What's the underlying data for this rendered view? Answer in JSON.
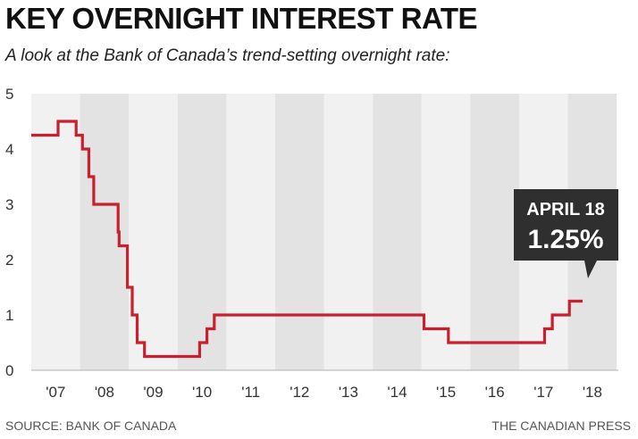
{
  "header": {
    "title": "KEY OVERNIGHT INTEREST RATE",
    "subtitle": "A look at the Bank of Canada’s trend-setting overnight rate:"
  },
  "footer": {
    "source": "SOURCE: BANK OF CANADA",
    "credit": "THE CANADIAN PRESS"
  },
  "colors": {
    "line": "#c8202e",
    "band_dark": "#e3e3e3",
    "band_light": "#f1f1f1",
    "callout_bg": "#2f2f2f"
  },
  "chart_data": {
    "type": "line",
    "title": "KEY OVERNIGHT INTEREST RATE",
    "subtitle": "A look at the Bank of Canada’s trend-setting overnight rate:",
    "xlabel": "",
    "ylabel": "",
    "xlim": [
      2007.0,
      2019.0
    ],
    "ylim": [
      0,
      5
    ],
    "yticks": [
      "0",
      "1",
      "2",
      "3",
      "4",
      "5"
    ],
    "xticks": [
      "'07",
      "'08",
      "'09",
      "'10",
      "'11",
      "'12",
      "'13",
      "'14",
      "'15",
      "'16",
      "'17",
      "'18"
    ],
    "grid": false,
    "series": [
      {
        "step": true,
        "points": [
          [
            2007.0,
            4.25
          ],
          [
            2007.55,
            4.5
          ],
          [
            2007.92,
            4.25
          ],
          [
            2008.05,
            4.0
          ],
          [
            2008.18,
            3.5
          ],
          [
            2008.28,
            3.0
          ],
          [
            2008.78,
            2.5
          ],
          [
            2008.8,
            2.25
          ],
          [
            2008.97,
            1.5
          ],
          [
            2009.07,
            1.0
          ],
          [
            2009.17,
            0.5
          ],
          [
            2009.32,
            0.25
          ],
          [
            2010.45,
            0.5
          ],
          [
            2010.6,
            0.75
          ],
          [
            2010.75,
            1.0
          ],
          [
            2015.05,
            0.75
          ],
          [
            2015.55,
            0.5
          ],
          [
            2017.52,
            0.75
          ],
          [
            2017.68,
            1.0
          ],
          [
            2018.03,
            1.25
          ],
          [
            2018.3,
            1.25
          ]
        ]
      }
    ],
    "annotations": [
      {
        "date": "APRIL 18",
        "value": "1.25%"
      }
    ]
  }
}
